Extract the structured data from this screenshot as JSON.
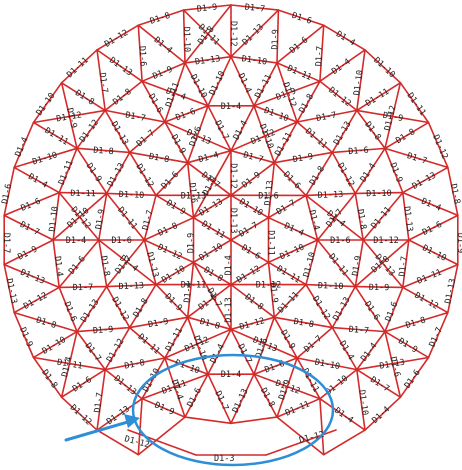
{
  "diagram": {
    "member_prefix": "D1-",
    "member_ids": [
      "D1-1",
      "D1-3",
      "D1-4",
      "D1-5",
      "D1-6",
      "D1-7",
      "D1-8",
      "D1-9",
      "D1-10",
      "D1-11",
      "D1-12",
      "D1-13"
    ],
    "colors": {
      "member_line": "#d42a2a",
      "member_text": "#222222",
      "highlight": "#2e8fd6",
      "background": "#ffffff"
    },
    "labels": {
      "bottom_chord": "D1-3",
      "bottom_left_edge": "D1-12",
      "bottom_right_edge": "D1-12",
      "top_edge": "D1-10",
      "ring_outer": [
        "D1-10",
        "D1-11",
        "D1-10",
        "D1-11",
        "D1-10",
        "D1-11",
        "D1-10",
        "D1-11"
      ],
      "inner": [
        "D1-6",
        "D1-7",
        "D1-8",
        "D1-9",
        "D1-13",
        "D1-5",
        "D1-4",
        "D1-1"
      ]
    },
    "annotation": {
      "shape": "ellipse-highlight",
      "pointer": "arrow-icon"
    }
  }
}
